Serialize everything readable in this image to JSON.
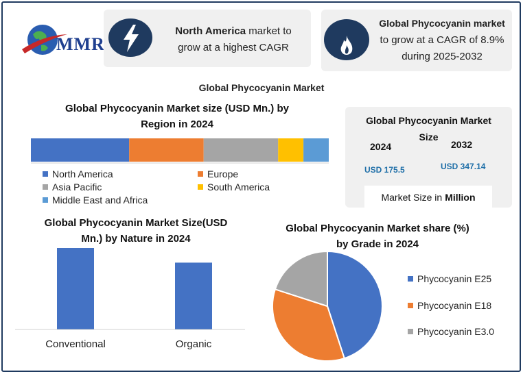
{
  "logo": {
    "text": "MMR"
  },
  "card1": {
    "bold": "North America",
    "rest_line1": " market to",
    "line2": "grow at a highest CAGR"
  },
  "card2": {
    "line1": "Global Phycocyanin market",
    "line2": "to grow at a CAGR of 8.9%",
    "line3": "during 2025-2032"
  },
  "main_title": "Global Phycocyanin Market",
  "region_chart": {
    "title_line1": "Global Phycocyanin Market size (USD Mn.) by",
    "title_line2": "Region in 2024"
  },
  "size_card": {
    "title_line1": "Global Phycocyanin Market",
    "title_line2": "Size",
    "year1": "2024",
    "year2": "2032",
    "value1": "USD 175.5",
    "value2": "USD 347.14",
    "footer_prefix": "Market Size in",
    "footer_bold": "Million"
  },
  "nature_chart": {
    "title_line1": "Global Phycocyanin Market Size(USD",
    "title_line2": "Mn.) by Nature in 2024"
  },
  "grade_chart": {
    "title_line1": "Global Phycocyanin Market share (%)",
    "title_line2": "by Grade in 2024"
  },
  "colors": {
    "blue": "#4472c4",
    "orange": "#ed7d31",
    "gray": "#a5a5a5",
    "yellow": "#ffc000",
    "lightblue": "#5b9bd5",
    "navy": "#1f3a5f"
  },
  "icons": {
    "card1": "lightning-icon",
    "card2": "flame-icon"
  },
  "chart_data": [
    {
      "type": "bar",
      "orientation": "horizontal-stacked",
      "title": "Global Phycocyanin Market size (USD Mn.) by Region in 2024",
      "series": [
        {
          "name": "North America",
          "value": 33,
          "color": "#4472c4"
        },
        {
          "name": "Europe",
          "value": 25,
          "color": "#ed7d31"
        },
        {
          "name": "Asia Pacific",
          "value": 25,
          "color": "#a5a5a5"
        },
        {
          "name": "South America",
          "value": 8.5,
          "color": "#ffc000"
        },
        {
          "name": "Middle East and Africa",
          "value": 8.5,
          "color": "#5b9bd5"
        }
      ],
      "legend_position": "bottom"
    },
    {
      "type": "bar",
      "title": "Global Phycocyanin Market Size(USD Mn.) by Nature in 2024",
      "categories": [
        "Conventional",
        "Organic"
      ],
      "values": [
        100,
        82
      ],
      "color": "#4472c4"
    },
    {
      "type": "pie",
      "title": "Global Phycocyanin Market share (%) by Grade in 2024",
      "labels": [
        "Phycocyanin E25",
        "Phycocyanin E18",
        "Phycocyanin E3.0"
      ],
      "values": [
        45,
        35,
        20
      ],
      "colors": [
        "#4472c4",
        "#ed7d31",
        "#a5a5a5"
      ],
      "legend_position": "right"
    }
  ]
}
